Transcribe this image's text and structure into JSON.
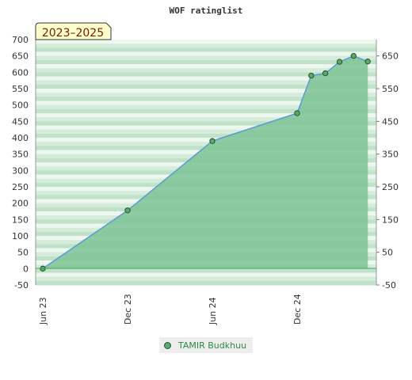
{
  "chart_data": {
    "type": "area",
    "title": "WOF ratinglist",
    "period_badge": "2023–2025",
    "ylim": [
      -50,
      700
    ],
    "y_ticks_left": [
      "700",
      "650",
      "600",
      "550",
      "500",
      "450",
      "400",
      "350",
      "300",
      "250",
      "200",
      "150",
      "100",
      "50",
      "0",
      "-50"
    ],
    "y_ticks_right": [
      "650",
      "550",
      "450",
      "350",
      "250",
      "150",
      "50",
      "-50"
    ],
    "x_ticks": [
      "Jun 23",
      "Dec 23",
      "Jun 24",
      "Dec 24"
    ],
    "series": [
      {
        "name": "TAMIR Budkhuu",
        "points": [
          {
            "x": "2023-06",
            "y": 0
          },
          {
            "x": "2023-12",
            "y": 178
          },
          {
            "x": "2024-06",
            "y": 390
          },
          {
            "x": "2024-12",
            "y": 475
          },
          {
            "x": "2025-01",
            "y": 590
          },
          {
            "x": "2025-02",
            "y": 597
          },
          {
            "x": "2025-03",
            "y": 632
          },
          {
            "x": "2025-04",
            "y": 650
          },
          {
            "x": "2025-05",
            "y": 633
          }
        ]
      }
    ],
    "colors": {
      "area": "#7cc394",
      "line": "#5b9bd5",
      "marker": "#5aa86b",
      "badge_bg": "#ffffcc"
    },
    "grid": "horizontal-bands",
    "legend": "bottom-center"
  }
}
